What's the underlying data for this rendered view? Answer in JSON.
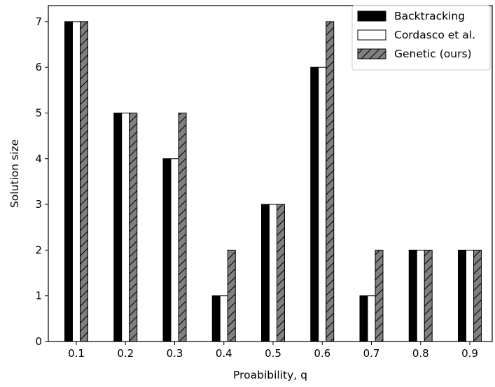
{
  "chart_data": {
    "type": "bar",
    "categories": [
      "0.1",
      "0.2",
      "0.3",
      "0.4",
      "0.5",
      "0.6",
      "0.7",
      "0.8",
      "0.9"
    ],
    "series": [
      {
        "name": "Backtracking",
        "values": [
          7,
          5,
          4,
          1,
          3,
          6,
          1,
          2,
          2
        ],
        "color": "#000000",
        "pattern": "solid"
      },
      {
        "name": "Cordasco et al.",
        "values": [
          7,
          5,
          4,
          1,
          3,
          6,
          1,
          2,
          2
        ],
        "color": "#ffffff",
        "pattern": "solid"
      },
      {
        "name": "Genetic (ours)",
        "values": [
          7,
          5,
          5,
          2,
          3,
          7,
          2,
          2,
          2
        ],
        "color": "#808080",
        "pattern": "hatch"
      }
    ],
    "title": "",
    "xlabel": "Proabibility, q",
    "ylabel": "Solution size",
    "ylim": [
      0,
      7.35
    ],
    "yticks": [
      "0",
      "1",
      "2",
      "3",
      "4",
      "5",
      "6",
      "7"
    ],
    "grid": false,
    "legend": {
      "position": "top-right",
      "entries": [
        "Backtracking",
        "Cordasco et al.",
        "Genetic (ours)"
      ]
    }
  }
}
